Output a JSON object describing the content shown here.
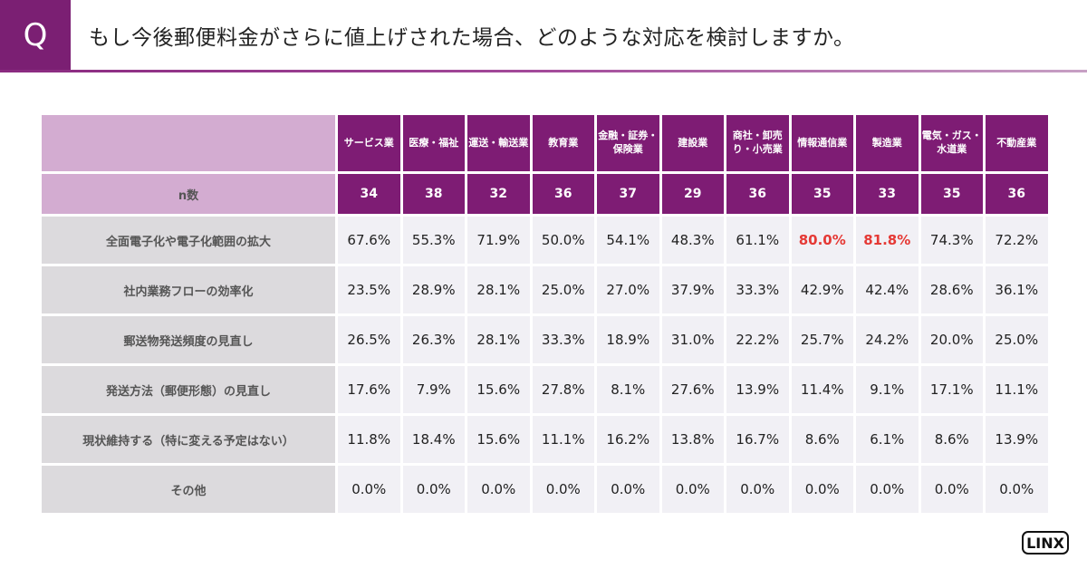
{
  "header": {
    "q_label": "Q",
    "question": "もし今後郵便料金がさらに値上げされた場合、どのような対応を検討しますか。"
  },
  "table": {
    "industries": [
      "サービス業",
      "医療・福祉",
      "運送・輸送業",
      "教育業",
      "金融・証券・保険業",
      "建設業",
      "商社・卸売り・小売業",
      "情報通信業",
      "製造業",
      "電気・ガス・水道業",
      "不動産業"
    ],
    "n_label": "n数",
    "n": [
      "34",
      "38",
      "32",
      "36",
      "37",
      "29",
      "36",
      "35",
      "33",
      "35",
      "36"
    ],
    "rows": [
      {
        "label": "全面電子化や電子化範囲の拡大",
        "values": [
          "67.6%",
          "55.3%",
          "71.9%",
          "50.0%",
          "54.1%",
          "48.3%",
          "61.1%",
          "80.0%",
          "81.8%",
          "74.3%",
          "72.2%"
        ],
        "highlight": [
          7,
          8
        ]
      },
      {
        "label": "社内業務フローの効率化",
        "values": [
          "23.5%",
          "28.9%",
          "28.1%",
          "25.0%",
          "27.0%",
          "37.9%",
          "33.3%",
          "42.9%",
          "42.4%",
          "28.6%",
          "36.1%"
        ],
        "highlight": []
      },
      {
        "label": "郵送物発送頻度の見直し",
        "values": [
          "26.5%",
          "26.3%",
          "28.1%",
          "33.3%",
          "18.9%",
          "31.0%",
          "22.2%",
          "25.7%",
          "24.2%",
          "20.0%",
          "25.0%"
        ],
        "highlight": []
      },
      {
        "label": "発送方法（郵便形態）の見直し",
        "values": [
          "17.6%",
          "7.9%",
          "15.6%",
          "27.8%",
          "8.1%",
          "27.6%",
          "13.9%",
          "11.4%",
          "9.1%",
          "17.1%",
          "11.1%"
        ],
        "highlight": []
      },
      {
        "label": "現状維持する（特に変える予定はない）",
        "values": [
          "11.8%",
          "18.4%",
          "15.6%",
          "11.1%",
          "16.2%",
          "13.8%",
          "16.7%",
          "8.6%",
          "6.1%",
          "8.6%",
          "13.9%"
        ],
        "highlight": []
      },
      {
        "label": "その他",
        "values": [
          "0.0%",
          "0.0%",
          "0.0%",
          "0.0%",
          "0.0%",
          "0.0%",
          "0.0%",
          "0.0%",
          "0.0%",
          "0.0%",
          "0.0%"
        ],
        "highlight": []
      }
    ]
  },
  "logo": {
    "text": "LINX"
  },
  "colors": {
    "brand": "#7e1c74",
    "highlight": "#e53935"
  }
}
